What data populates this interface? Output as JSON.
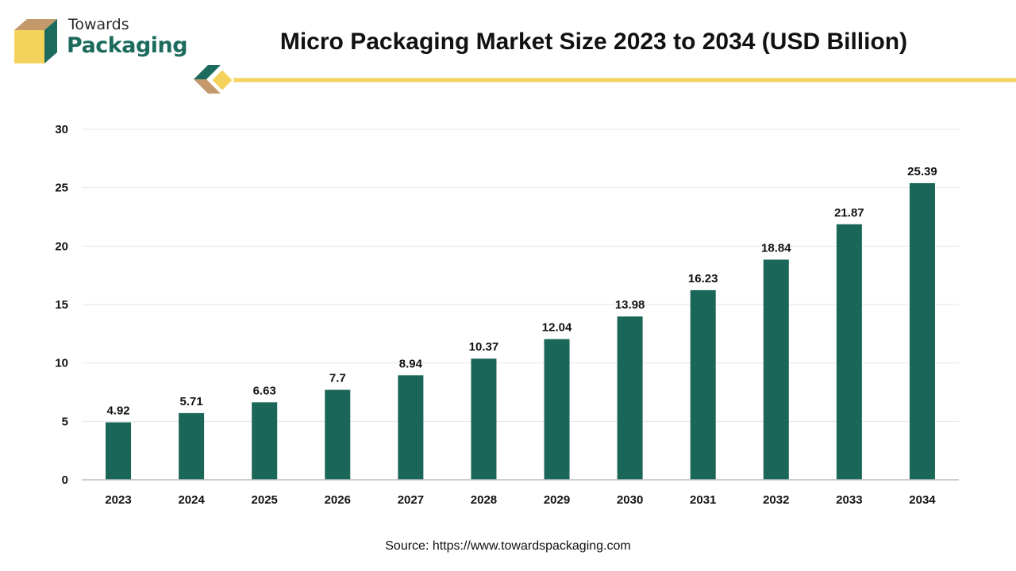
{
  "brand": {
    "name_top": "Towards",
    "name_bottom": "Packaging",
    "colors": {
      "dark_green": "#1c6b5c",
      "yellow": "#f5d25c",
      "tan": "#c49a6c"
    }
  },
  "source_text": "Source: https://www.towardspackaging.com",
  "chart_data": {
    "type": "bar",
    "title": "Micro Packaging Market Size 2023 to 2034 (USD Billion)",
    "xlabel": "",
    "ylabel": "",
    "categories": [
      "2023",
      "2024",
      "2025",
      "2026",
      "2027",
      "2028",
      "2029",
      "2030",
      "2031",
      "2032",
      "2033",
      "2034"
    ],
    "values": [
      4.92,
      5.71,
      6.63,
      7.7,
      8.94,
      10.37,
      12.04,
      13.98,
      16.23,
      18.84,
      21.87,
      25.39
    ],
    "data_labels": [
      "4.92",
      "5.71",
      "6.63",
      "7.7",
      "8.94",
      "10.37",
      "12.04",
      "13.98",
      "16.23",
      "18.84",
      "21.87",
      "25.39"
    ],
    "yticks": [
      0,
      5,
      10,
      15,
      20,
      25,
      30
    ],
    "ylim": [
      0,
      30
    ],
    "grid": true,
    "bar_color": "#1a6658",
    "accent_line_color": "#f5d25c"
  }
}
